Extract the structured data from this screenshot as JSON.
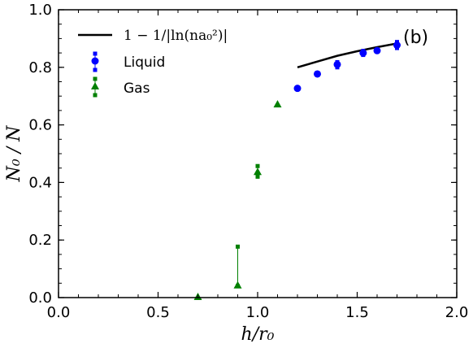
{
  "chart_data": {
    "type": "scatter",
    "xlabel": "h/r₀",
    "ylabel": "N₀ / N",
    "xlim": [
      0.0,
      2.0
    ],
    "ylim": [
      0.0,
      1.0
    ],
    "xticks": [
      0.0,
      0.5,
      1.0,
      1.5,
      2.0
    ],
    "yticks": [
      0.0,
      0.2,
      0.4,
      0.6,
      0.8,
      1.0
    ],
    "x_tick_labels": [
      "0.0",
      "0.5",
      "1.0",
      "1.5",
      "2.0"
    ],
    "y_tick_labels": [
      "0.0",
      "0.2",
      "0.4",
      "0.6",
      "0.8",
      "1.0"
    ],
    "annotation": "(b)",
    "legend_placement": "top-left",
    "grid": false,
    "series": [
      {
        "name": "1 − 1/|ln(na₀²)|",
        "kind": "line",
        "color": "#000000",
        "x": [
          1.2,
          1.3,
          1.4,
          1.5,
          1.6,
          1.7
        ],
        "y": [
          0.8,
          0.82,
          0.84,
          0.856,
          0.87,
          0.883
        ]
      },
      {
        "name": "Liquid",
        "kind": "points",
        "marker": "circle",
        "color": "#0000ff",
        "x": [
          1.2,
          1.3,
          1.4,
          1.53,
          1.6,
          1.7
        ],
        "y": [
          0.727,
          0.777,
          0.81,
          0.85,
          0.858,
          0.877
        ],
        "ylow": [
          0.727,
          0.777,
          0.8,
          0.843,
          0.855,
          0.867
        ],
        "yhigh": [
          0.727,
          0.777,
          0.818,
          0.857,
          0.862,
          0.888
        ]
      },
      {
        "name": "Gas",
        "kind": "points",
        "marker": "triangle",
        "color": "#008000",
        "x": [
          0.7,
          0.9,
          1.0,
          1.1
        ],
        "y": [
          0.003,
          0.043,
          0.437,
          0.672
        ],
        "ylow": [
          0.003,
          0.04,
          0.42,
          0.672
        ],
        "yhigh": [
          0.003,
          0.177,
          0.457,
          0.672
        ]
      }
    ]
  }
}
